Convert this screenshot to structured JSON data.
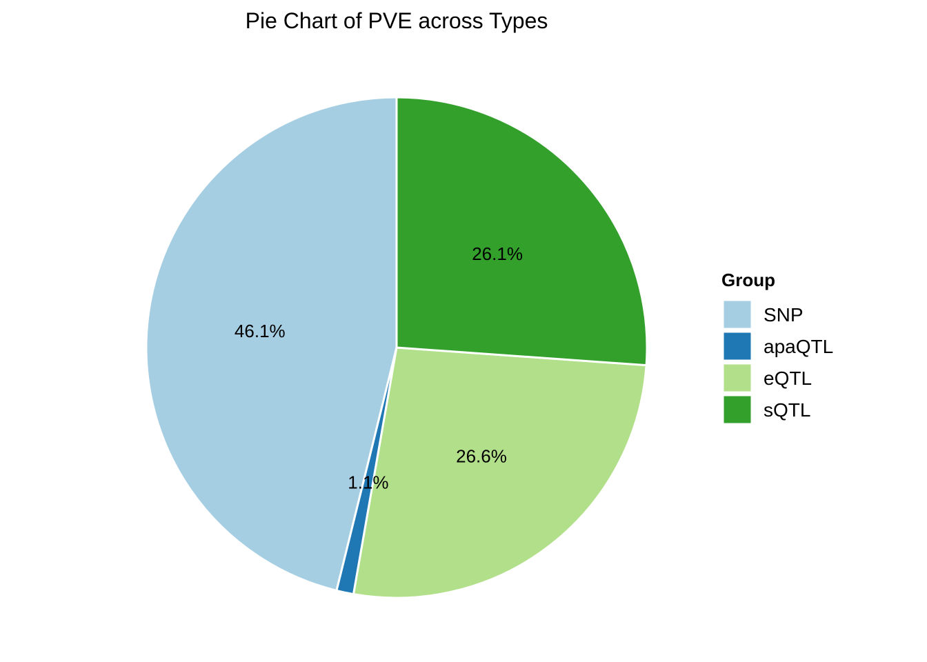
{
  "chart_data": {
    "type": "pie",
    "title": "Pie Chart of PVE across Types",
    "legend": {
      "title": "Group",
      "position": "right"
    },
    "start_angle": "12 o'clock",
    "direction": "counterclockwise",
    "slice_order": [
      "SNP",
      "apaQTL",
      "eQTL",
      "sQTL"
    ],
    "slices": [
      {
        "name": "SNP",
        "value": 46.1,
        "label": "46.1%",
        "color": "#A6CEE3"
      },
      {
        "name": "apaQTL",
        "value": 1.1,
        "label": "1.1%",
        "color": "#1F78B4"
      },
      {
        "name": "eQTL",
        "value": 26.6,
        "label": "26.6%",
        "color": "#B2DF8A"
      },
      {
        "name": "sQTL",
        "value": 26.1,
        "label": "26.1%",
        "color": "#33A02C"
      }
    ],
    "slice_border_color": "#FFFFFF"
  }
}
